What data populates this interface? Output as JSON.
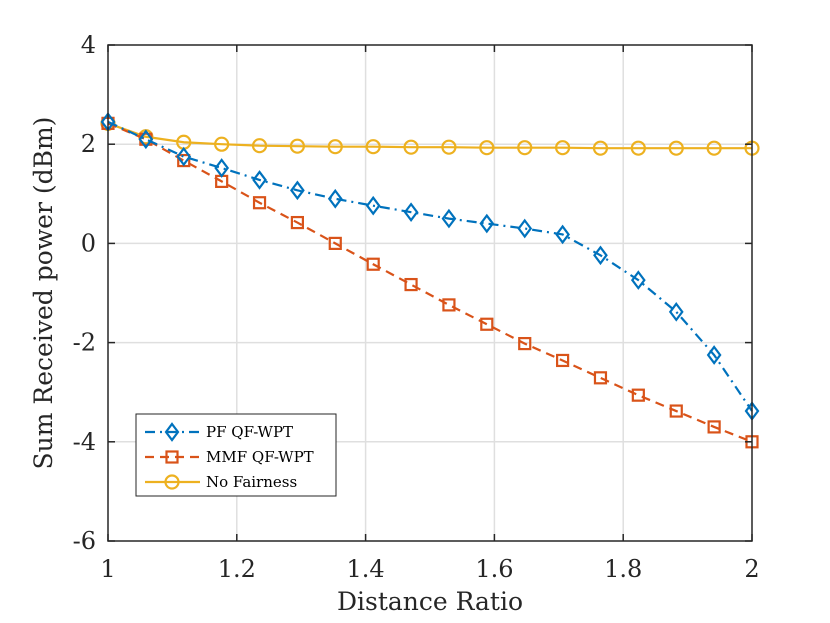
{
  "chart_data": {
    "type": "line",
    "title": "",
    "xlabel": "Distance Ratio",
    "ylabel": "Sum Received power (dBm)",
    "xlim": [
      1,
      2
    ],
    "ylim": [
      -6,
      4
    ],
    "grid": true,
    "legend_position": "bottom-left",
    "xticks": [
      1,
      1.2,
      1.4,
      1.6,
      1.8,
      2
    ],
    "xtick_labels": [
      "1",
      "1.2",
      "1.4",
      "1.6",
      "1.8",
      "2"
    ],
    "yticks": [
      -6,
      -4,
      -2,
      0,
      2,
      4
    ],
    "ytick_labels": [
      "-6",
      "-4",
      "-2",
      "0",
      "2",
      "4"
    ],
    "x": [
      1.0,
      1.0588,
      1.1176,
      1.1765,
      1.2353,
      1.2941,
      1.3529,
      1.4118,
      1.4706,
      1.5294,
      1.5882,
      1.6471,
      1.7059,
      1.7647,
      1.8235,
      1.8824,
      1.9412,
      2.0
    ],
    "series": [
      {
        "name": "PF QF-WPT",
        "color": "#0072BD",
        "marker": "diamond",
        "linestyle": "dashdot",
        "values": [
          2.45,
          2.1,
          1.75,
          1.52,
          1.28,
          1.07,
          0.9,
          0.76,
          0.63,
          0.5,
          0.4,
          0.3,
          0.18,
          -0.24,
          -0.74,
          -1.38,
          -2.25,
          -3.38
        ]
      },
      {
        "name": "MMF QF-WPT",
        "color": "#D95319",
        "marker": "square",
        "linestyle": "dashed",
        "values": [
          2.42,
          2.1,
          1.67,
          1.25,
          0.82,
          0.42,
          0.0,
          -0.42,
          -0.83,
          -1.24,
          -1.63,
          -2.02,
          -2.36,
          -2.71,
          -3.06,
          -3.38,
          -3.7,
          -4.0
        ]
      },
      {
        "name": "No Fairness",
        "color": "#EDB120",
        "marker": "circle",
        "linestyle": "solid",
        "values": [
          2.42,
          2.15,
          2.04,
          2.0,
          1.97,
          1.96,
          1.95,
          1.95,
          1.94,
          1.94,
          1.93,
          1.93,
          1.93,
          1.92,
          1.92,
          1.92,
          1.92,
          1.92
        ]
      }
    ]
  }
}
